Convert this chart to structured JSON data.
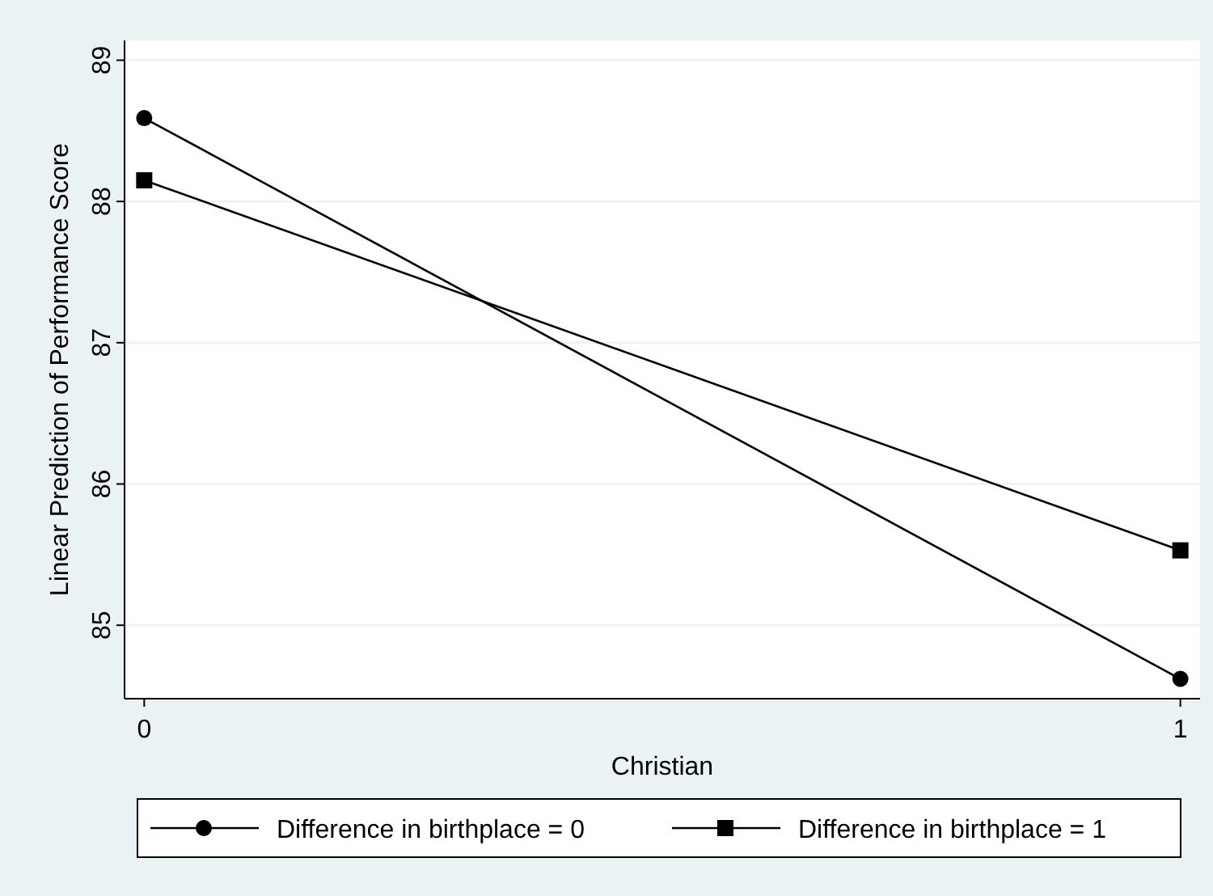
{
  "chart_data": {
    "type": "line",
    "xlabel": "Christian",
    "ylabel": "Linear Prediction of Performance Score",
    "x": [
      0,
      1
    ],
    "series": [
      {
        "name": "Difference in birthplace = 0",
        "color": "#000000",
        "marker": "circle",
        "values": [
          88.59,
          84.62
        ]
      },
      {
        "name": "Difference in birthplace = 1",
        "color": "#000000",
        "marker": "square",
        "values": [
          88.15,
          85.53
        ]
      }
    ],
    "xlim": [
      -0.019,
      1.019
    ],
    "xticks": [
      0,
      1
    ],
    "ylim": [
      84.48,
      89.14
    ],
    "yticks": [
      85,
      86,
      87,
      88,
      89
    ],
    "grid": "y",
    "legend": "bottom",
    "line_style": "solid"
  }
}
